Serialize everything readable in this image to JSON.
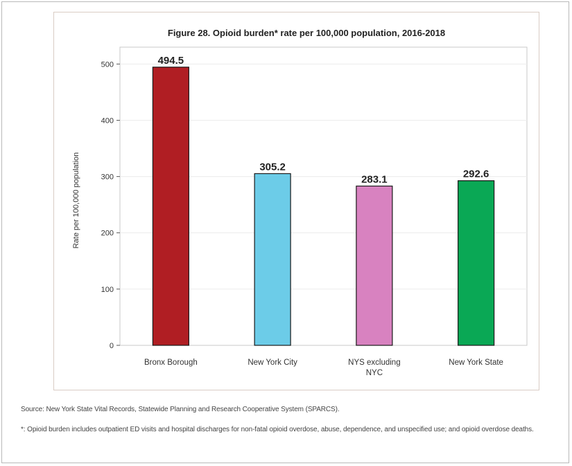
{
  "chart_data": {
    "type": "bar",
    "title": "Figure 28. Opioid burden* rate per 100,000 population, 2016-2018",
    "xlabel": "",
    "ylabel": "Rate per 100,000 population",
    "categories": [
      [
        "Bronx Borough"
      ],
      [
        "New York City"
      ],
      [
        "NYS excluding",
        "NYC"
      ],
      [
        "New York State"
      ]
    ],
    "values": [
      494.5,
      305.2,
      283.1,
      292.6
    ],
    "value_labels": [
      "494.5",
      "305.2",
      "283.1",
      "292.6"
    ],
    "colors": [
      "#b01e23",
      "#6ccce8",
      "#d882c0",
      "#0aa855"
    ],
    "ylim": [
      0,
      530
    ],
    "yticks": [
      0,
      100,
      200,
      300,
      400,
      500
    ],
    "grid": true,
    "legend": "none"
  },
  "notes": {
    "source": "Source: New York State Vital Records, Statewide Planning and Research Cooperative System (SPARCS).",
    "footnote": "*: Opioid burden includes outpatient ED visits and hospital discharges for non-fatal opioid overdose, abuse, dependence, and unspecified use; and opioid overdose deaths."
  }
}
